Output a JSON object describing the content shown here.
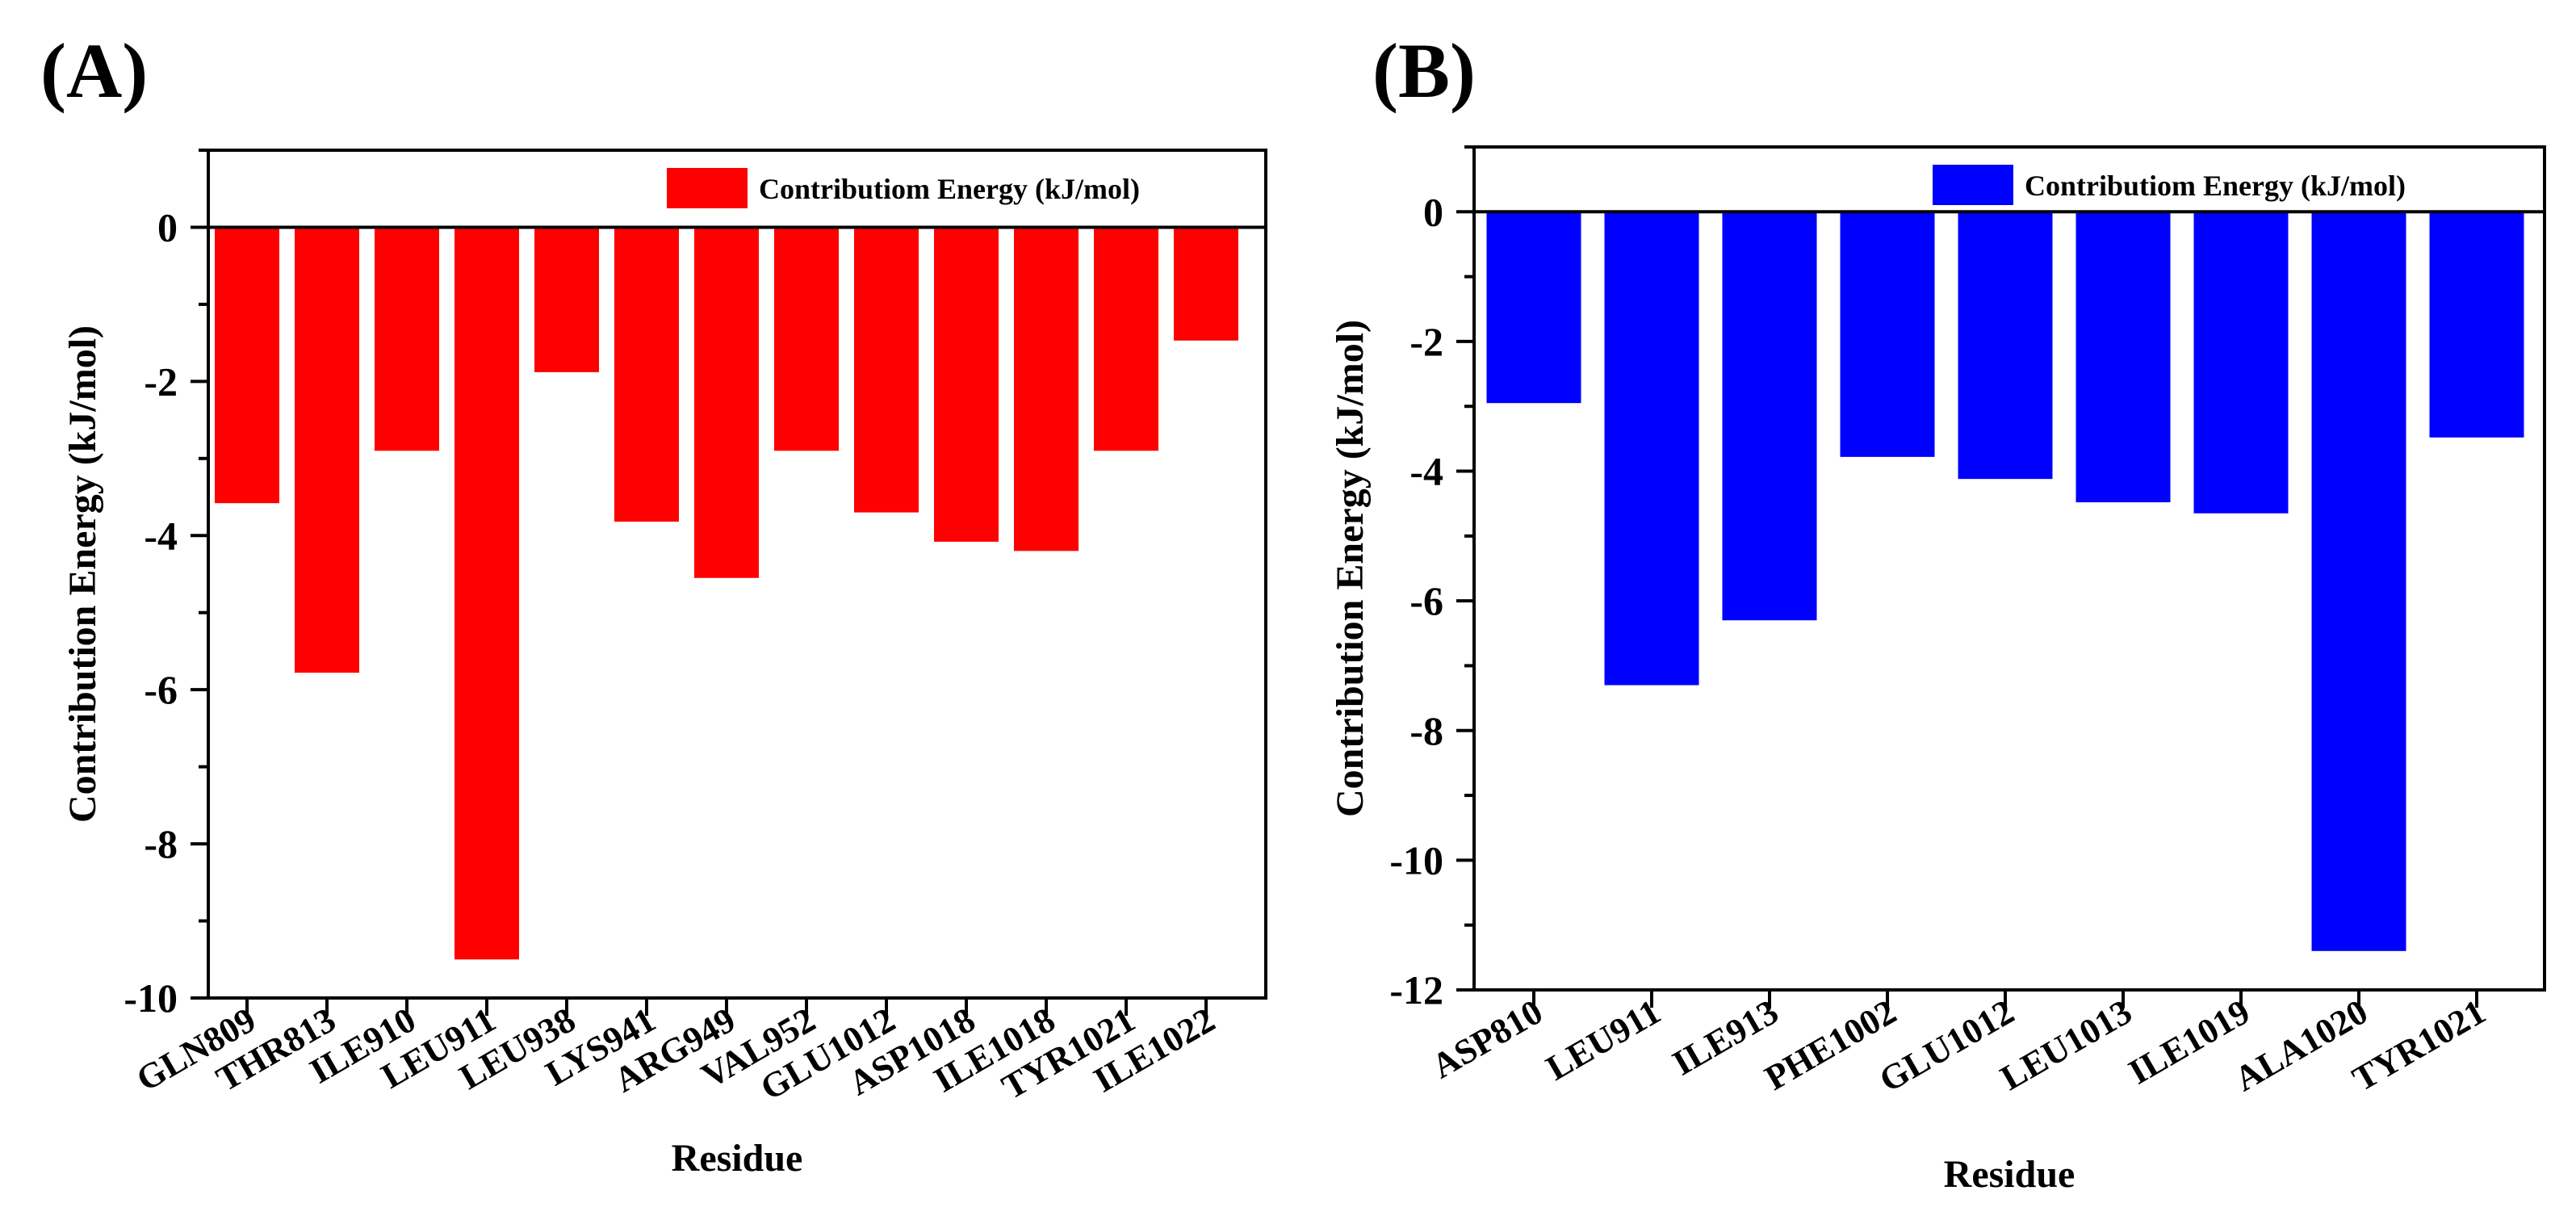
{
  "chart_data": [
    {
      "panel_label": "(A)",
      "type": "bar",
      "categories": [
        "GLN809",
        "THR813",
        "ILE910",
        "LEU911",
        "LEU938",
        "LYS941",
        "ARG949",
        "VAL952",
        "GLU1012",
        "ASP1018",
        "ILE1018",
        "TYR1021",
        "ILE1022"
      ],
      "values": [
        -3.58,
        -5.78,
        -2.9,
        -9.5,
        -1.88,
        -3.82,
        -4.55,
        -2.9,
        -3.7,
        -4.08,
        -4.2,
        -2.9,
        -1.47
      ],
      "color": "#ff0000",
      "xlabel": "Residue",
      "ylabel": "Contribution Energy (kJ/mol)",
      "ylim": [
        -10,
        1
      ],
      "yticks": [
        0,
        -2,
        -4,
        -6,
        -8,
        -10
      ],
      "ytick_labels": [
        "0",
        "-2",
        "-4",
        "-6",
        "-8",
        "-10"
      ],
      "legend": "Contributiom Energy (kJ/mol)",
      "legend_position": "top-right"
    },
    {
      "panel_label": "(B)",
      "type": "bar",
      "categories": [
        "ASP810",
        "LEU911",
        "ILE913",
        "PHE1002",
        "GLU1012",
        "LEU1013",
        "ILE1019",
        "ALA1020",
        "TYR1021"
      ],
      "values": [
        -2.95,
        -7.3,
        -6.3,
        -3.78,
        -4.12,
        -4.48,
        -4.65,
        -11.4,
        -3.48
      ],
      "color": "#0000ff",
      "xlabel": "Residue",
      "ylabel": "Contribution Energy (kJ/mol)",
      "ylim": [
        -12,
        1
      ],
      "yticks": [
        0,
        -2,
        -4,
        -6,
        -8,
        -10,
        -12
      ],
      "ytick_labels": [
        "0",
        "-2",
        "-4",
        "-6",
        "-8",
        "-10",
        "-12"
      ],
      "legend": "Contributiom Energy (kJ/mol)",
      "legend_position": "top-right"
    }
  ]
}
